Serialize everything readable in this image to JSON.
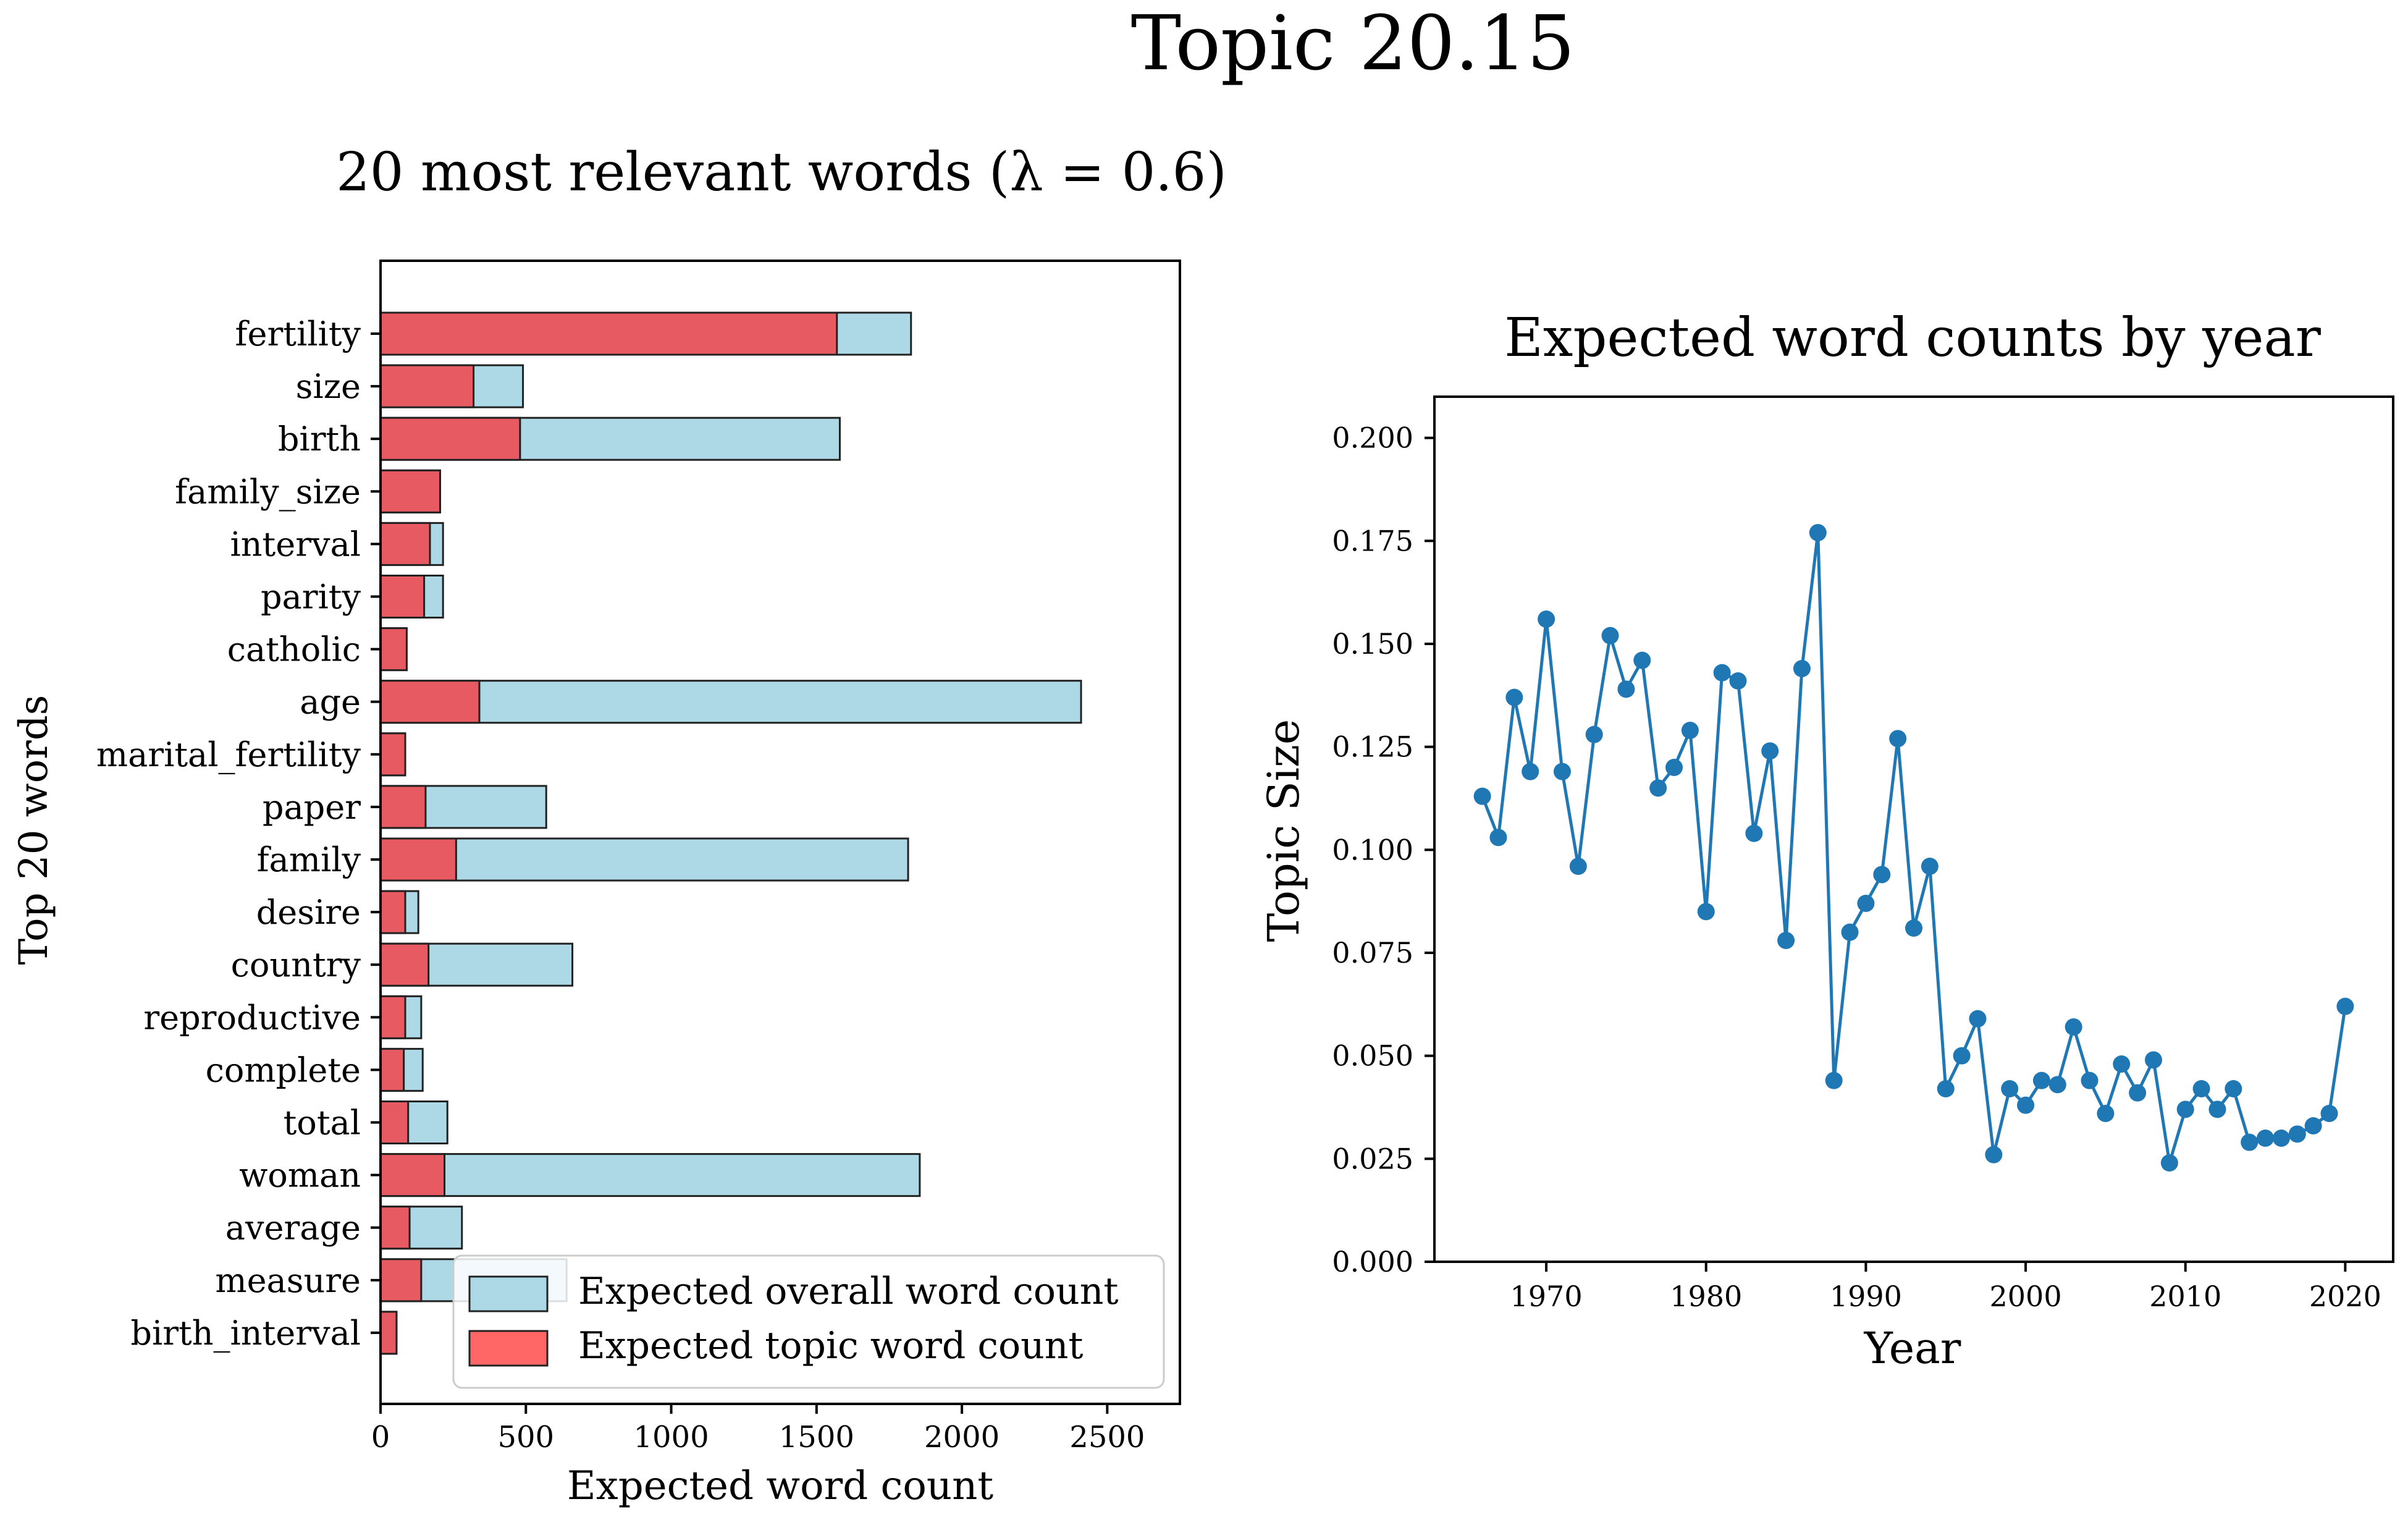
{
  "figure_title": "Topic 20.15",
  "colors": {
    "overall_bar": "#add8e6",
    "topic_bar": "#ff6666",
    "topic_bar_render": "#e75a62",
    "line": "#1f77b4",
    "edge": "#222222"
  },
  "chart_data": [
    {
      "type": "bar",
      "orientation": "horizontal",
      "title": "20 most relevant words (λ = 0.6)",
      "xlabel": "Expected word count",
      "ylabel": "Top 20 words",
      "xlim": [
        0,
        2750
      ],
      "xticks": [
        0,
        500,
        1000,
        1500,
        2000,
        2500
      ],
      "legend_location": "lower right",
      "categories": [
        "fertility",
        "size",
        "birth",
        "family_size",
        "interval",
        "parity",
        "catholic",
        "age",
        "marital_fertility",
        "paper",
        "family",
        "desire",
        "country",
        "reproductive",
        "complete",
        "total",
        "woman",
        "average",
        "measure",
        "birth_interval"
      ],
      "series": [
        {
          "name": "Expected overall word count",
          "values": [
            1825,
            490,
            1580,
            205,
            215,
            215,
            90,
            2410,
            85,
            570,
            1815,
            130,
            660,
            140,
            145,
            230,
            1855,
            280,
            640,
            55
          ]
        },
        {
          "name": "Expected topic word count",
          "values": [
            1570,
            320,
            480,
            205,
            170,
            150,
            90,
            340,
            85,
            155,
            260,
            85,
            165,
            85,
            80,
            95,
            220,
            100,
            140,
            55
          ]
        }
      ]
    },
    {
      "type": "line",
      "title": "Expected word counts by year",
      "xlabel": "Year",
      "ylabel": "Topic Size",
      "xlim": [
        1963,
        2023
      ],
      "ylim": [
        0,
        0.21
      ],
      "xticks": [
        1970,
        1980,
        1990,
        2000,
        2010,
        2020
      ],
      "yticks": [
        "0.000",
        "0.025",
        "0.050",
        "0.075",
        "0.100",
        "0.125",
        "0.150",
        "0.175",
        "0.200"
      ],
      "x": [
        1966,
        1967,
        1968,
        1969,
        1970,
        1971,
        1972,
        1973,
        1974,
        1975,
        1976,
        1977,
        1978,
        1979,
        1980,
        1981,
        1982,
        1983,
        1984,
        1985,
        1986,
        1987,
        1988,
        1989,
        1990,
        1991,
        1992,
        1993,
        1994,
        1995,
        1996,
        1997,
        1998,
        1999,
        2000,
        2001,
        2002,
        2003,
        2004,
        2005,
        2006,
        2007,
        2008,
        2009,
        2010,
        2011,
        2012,
        2013,
        2014,
        2015,
        2016,
        2017,
        2018,
        2019,
        2020
      ],
      "y": [
        0.113,
        0.103,
        0.137,
        0.119,
        0.156,
        0.119,
        0.096,
        0.128,
        0.152,
        0.139,
        0.146,
        0.115,
        0.12,
        0.129,
        0.085,
        0.143,
        0.141,
        0.104,
        0.124,
        0.078,
        0.144,
        0.177,
        0.044,
        0.08,
        0.087,
        0.094,
        0.127,
        0.081,
        0.096,
        0.042,
        0.05,
        0.059,
        0.026,
        0.042,
        0.038,
        0.044,
        0.043,
        0.057,
        0.044,
        0.036,
        0.048,
        0.041,
        0.049,
        0.024,
        0.037,
        0.042,
        0.037,
        0.042,
        0.029,
        0.03,
        0.03,
        0.031,
        0.033,
        0.036,
        0.062
      ]
    }
  ]
}
